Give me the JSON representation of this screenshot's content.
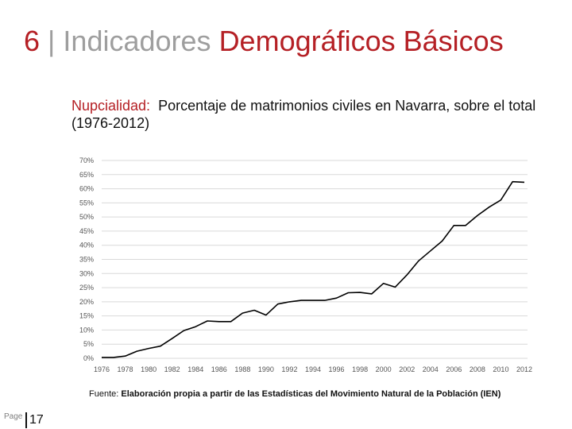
{
  "slide": {
    "number": "6",
    "separator": "|",
    "title_part1": "Indicadores",
    "title_part2": "Demográficos Básicos"
  },
  "heading": {
    "lead": "Nupcialidad:",
    "text": "Porcentaje de matrimonios civiles en Navarra, sobre el total (1976-2012)"
  },
  "source": {
    "label": "Fuente:",
    "text": "Elaboración propia a partir de las Estadísticas del Movimiento Natural de la Población (IEN)"
  },
  "footer": {
    "page_label": "Page",
    "page_number": "17"
  },
  "colors": {
    "accent": "#b52025",
    "muted": "#9e9e9e",
    "line": "#000000",
    "grid": "#d9d9d9"
  },
  "chart_data": {
    "type": "line",
    "title": "",
    "xlabel": "",
    "ylabel": "",
    "ylim": [
      0,
      70
    ],
    "yticks": [
      "0%",
      "5%",
      "10%",
      "15%",
      "20%",
      "25%",
      "30%",
      "35%",
      "40%",
      "45%",
      "50%",
      "55%",
      "60%",
      "65%",
      "70%"
    ],
    "xticks": [
      "1976",
      "1978",
      "1980",
      "1982",
      "1984",
      "1986",
      "1988",
      "1990",
      "1992",
      "1994",
      "1996",
      "1998",
      "2000",
      "2002",
      "2004",
      "2006",
      "2008",
      "2010",
      "2012"
    ],
    "grid": true,
    "legend": "none",
    "series": [
      {
        "x": [
          1976,
          1977,
          1978,
          1979,
          1980,
          1981,
          1982,
          1983,
          1984,
          1985,
          1986,
          1987,
          1988,
          1989,
          1990,
          1991,
          1992,
          1993,
          1994,
          1995,
          1996,
          1997,
          1998,
          1999,
          2000,
          2001,
          2002,
          2003,
          2004,
          2005,
          2006,
          2007,
          2008,
          2009,
          2010,
          2011,
          2012
        ],
        "values": [
          0.3,
          0.3,
          0.8,
          2.5,
          3.5,
          4.3,
          7.0,
          9.8,
          11.2,
          13.2,
          13.0,
          13.0,
          16.0,
          17.0,
          15.3,
          19.2,
          20.0,
          20.5,
          20.5,
          20.5,
          21.3,
          23.2,
          23.3,
          22.8,
          26.5,
          25.2,
          29.5,
          34.5,
          38.0,
          41.5,
          47.0,
          47.0,
          50.5,
          53.5,
          56.0,
          62.5,
          62.3
        ]
      }
    ]
  }
}
